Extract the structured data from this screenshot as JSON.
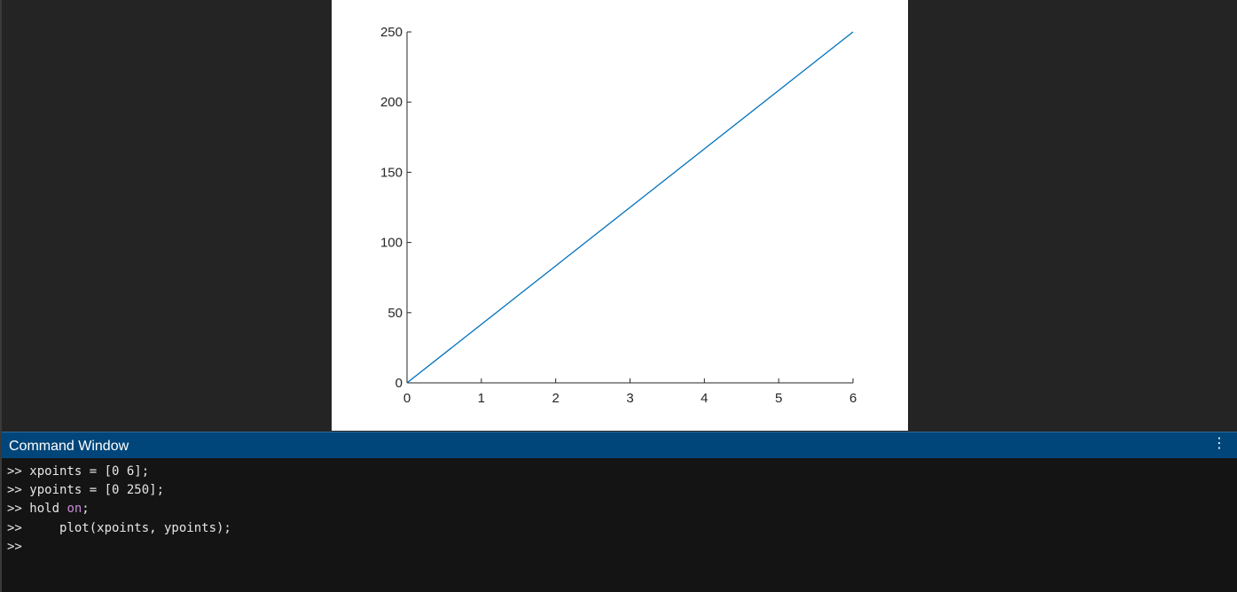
{
  "window": {
    "command_window_title": "Command Window",
    "menu_icon": "vertical-ellipsis-icon",
    "menu_glyph": "⋮"
  },
  "command_window": {
    "prompt": ">>",
    "lines": [
      {
        "prompt": ">>",
        "code": " xpoints = [0 6];",
        "keyword": ""
      },
      {
        "prompt": ">>",
        "code": " ypoints = [0 250];",
        "keyword": ""
      },
      {
        "prompt": ">>",
        "code": " hold ",
        "keyword": "on",
        "after": ";"
      },
      {
        "prompt": ">>",
        "code": "     plot(xpoints, ypoints);",
        "keyword": ""
      },
      {
        "prompt": ">>",
        "code": "",
        "keyword": ""
      }
    ]
  },
  "colors": {
    "line": "#0072BD",
    "header_bg": "#00467A",
    "keyword": "#C78BD9"
  },
  "chart_data": {
    "type": "line",
    "title": "",
    "xlabel": "",
    "ylabel": "",
    "xlim": [
      0,
      6
    ],
    "ylim": [
      0,
      250
    ],
    "x_ticks": [
      "0",
      "1",
      "2",
      "3",
      "4",
      "5",
      "6"
    ],
    "y_ticks": [
      "0",
      "50",
      "100",
      "150",
      "200",
      "250"
    ],
    "grid": false,
    "series": [
      {
        "x": [
          0,
          6
        ],
        "y": [
          0,
          250
        ],
        "color": "#0072BD"
      }
    ]
  }
}
